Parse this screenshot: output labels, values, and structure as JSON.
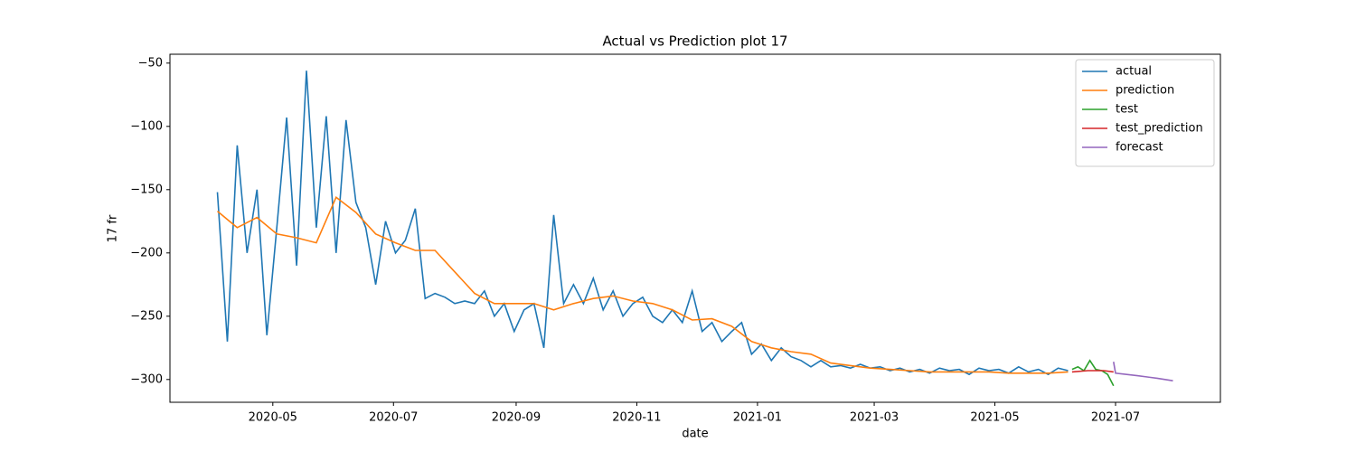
{
  "chart_data": {
    "type": "line",
    "title": "Actual vs Prediction plot 17",
    "x_label": "date",
    "y_label": "17 fr",
    "xlim": [
      18331,
      18862
    ],
    "ylim": [
      -318,
      -43
    ],
    "xticks": [
      {
        "value": 18383,
        "label": "2020-05"
      },
      {
        "value": 18444,
        "label": "2020-07"
      },
      {
        "value": 18506,
        "label": "2020-09"
      },
      {
        "value": 18567,
        "label": "2020-11"
      },
      {
        "value": 18628,
        "label": "2021-01"
      },
      {
        "value": 18687,
        "label": "2021-03"
      },
      {
        "value": 18748,
        "label": "2021-05"
      },
      {
        "value": 18809,
        "label": "2021-07"
      }
    ],
    "yticks": [
      {
        "value": -300,
        "label": "−300"
      },
      {
        "value": -250,
        "label": "−250"
      },
      {
        "value": -200,
        "label": "−200"
      },
      {
        "value": -150,
        "label": "−150"
      },
      {
        "value": -100,
        "label": "−100"
      },
      {
        "value": -50,
        "label": "−50"
      }
    ],
    "legend": "upper right",
    "series": [
      {
        "name": "actual",
        "color": "#1f77b4",
        "x": [
          18355,
          18360,
          18365,
          18370,
          18375,
          18380,
          18385,
          18390,
          18395,
          18400,
          18405,
          18410,
          18415,
          18420,
          18425,
          18430,
          18435,
          18440,
          18445,
          18450,
          18455,
          18460,
          18465,
          18470,
          18475,
          18480,
          18485,
          18490,
          18495,
          18500,
          18505,
          18510,
          18515,
          18520,
          18525,
          18530,
          18535,
          18540,
          18545,
          18550,
          18555,
          18560,
          18565,
          18570,
          18575,
          18580,
          18585,
          18590,
          18595,
          18600,
          18605,
          18610,
          18615,
          18620,
          18625,
          18630,
          18635,
          18640,
          18645,
          18650,
          18655,
          18660,
          18665,
          18670,
          18675,
          18680,
          18685,
          18690,
          18695,
          18700,
          18705,
          18710,
          18715,
          18720,
          18725,
          18730,
          18735,
          18740,
          18745,
          18750,
          18755,
          18760,
          18765,
          18770,
          18775,
          18780,
          18785
        ],
        "values": [
          -152,
          -270,
          -115,
          -200,
          -150,
          -265,
          -180,
          -93,
          -210,
          -56,
          -180,
          -92,
          -200,
          -95,
          -160,
          -180,
          -225,
          -175,
          -200,
          -190,
          -165,
          -236,
          -232,
          -235,
          -240,
          -238,
          -240,
          -230,
          -250,
          -240,
          -262,
          -245,
          -240,
          -275,
          -170,
          -240,
          -225,
          -240,
          -220,
          -245,
          -230,
          -250,
          -240,
          -235,
          -250,
          -255,
          -245,
          -255,
          -230,
          -262,
          -255,
          -270,
          -262,
          -255,
          -280,
          -272,
          -285,
          -275,
          -282,
          -285,
          -290,
          -285,
          -290,
          -289,
          -291,
          -288,
          -291,
          -290,
          -293,
          -291,
          -294,
          -292,
          -295,
          -291,
          -293,
          -292,
          -296,
          -291,
          -293,
          -292,
          -295,
          -290,
          -294,
          -292,
          -296,
          -291,
          -293
        ]
      },
      {
        "name": "prediction",
        "color": "#ff7f0e",
        "x": [
          18355,
          18365,
          18375,
          18385,
          18395,
          18405,
          18415,
          18425,
          18435,
          18445,
          18455,
          18465,
          18475,
          18485,
          18495,
          18505,
          18515,
          18525,
          18535,
          18545,
          18555,
          18565,
          18575,
          18585,
          18595,
          18605,
          18615,
          18625,
          18635,
          18645,
          18655,
          18665,
          18675,
          18685,
          18695,
          18705,
          18715,
          18725,
          18735,
          18745,
          18755,
          18765,
          18775,
          18785
        ],
        "values": [
          -167,
          -180,
          -172,
          -185,
          -188,
          -192,
          -156,
          -168,
          -185,
          -192,
          -198,
          -198,
          -215,
          -232,
          -240,
          -240,
          -240,
          -245,
          -240,
          -236,
          -234,
          -238,
          -240,
          -245,
          -253,
          -252,
          -258,
          -270,
          -275,
          -278,
          -280,
          -287,
          -289,
          -291,
          -292,
          -293,
          -294,
          -294,
          -294,
          -294,
          -295,
          -295,
          -295,
          -294
        ]
      },
      {
        "name": "test",
        "color": "#2ca02c",
        "x": [
          18787,
          18790,
          18793,
          18796,
          18799,
          18802,
          18805,
          18808
        ],
        "values": [
          -292,
          -290,
          -293,
          -285,
          -292,
          -293,
          -296,
          -305
        ]
      },
      {
        "name": "test_prediction",
        "color": "#d62728",
        "x": [
          18787,
          18795,
          18803,
          18808
        ],
        "values": [
          -294,
          -293,
          -293,
          -294
        ]
      },
      {
        "name": "forecast",
        "color": "#9467bd",
        "x": [
          18808,
          18809,
          18820,
          18830,
          18838
        ],
        "values": [
          -286,
          -295,
          -297,
          -299,
          -301
        ]
      }
    ]
  }
}
